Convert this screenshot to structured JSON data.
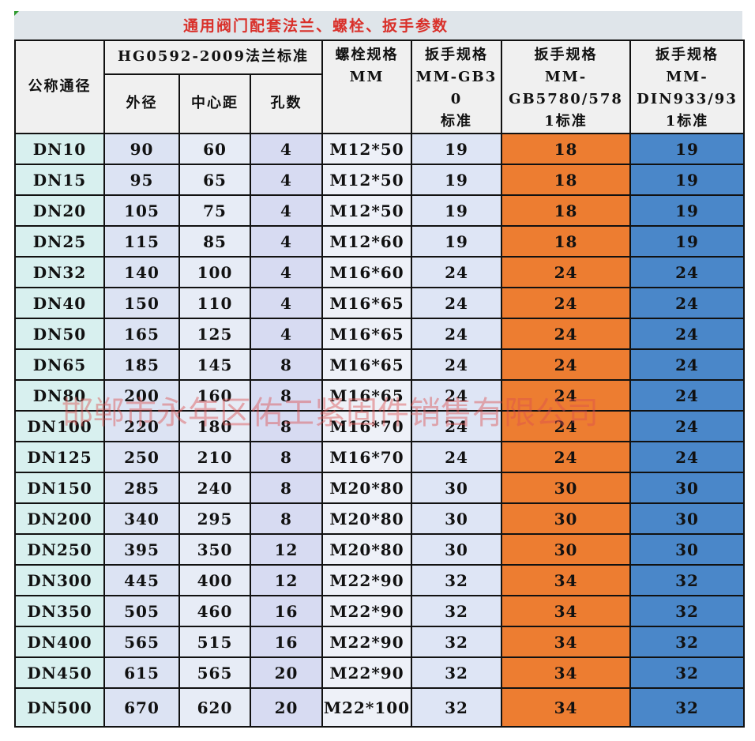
{
  "title": "通用阀门配套法兰、螺栓、扳手参数",
  "watermark": "邯郸市永年区佑工紧固件销售有限公司",
  "header": {
    "nominal": "公称通径",
    "flange_standard": "HG0592-2009法兰标准",
    "outer_diameter": "外径",
    "center_distance": "中心距",
    "holes": "孔数",
    "bolt": [
      "螺栓规格",
      "MM"
    ],
    "wrench_gb30": [
      "扳手规格",
      "MM-GB30",
      "标准"
    ],
    "wrench_gb5780": [
      "扳手规格",
      "MM-",
      "GB5780/578",
      "1标准"
    ],
    "wrench_din933": [
      "扳手规格",
      "MM-",
      "DIN933/93",
      "1标准"
    ]
  },
  "table": {
    "rows": [
      [
        "DN10",
        90,
        60,
        4,
        "M12*50",
        19,
        18,
        19
      ],
      [
        "DN15",
        95,
        65,
        4,
        "M12*50",
        19,
        18,
        19
      ],
      [
        "DN20",
        105,
        75,
        4,
        "M12*50",
        19,
        18,
        19
      ],
      [
        "DN25",
        115,
        85,
        4,
        "M12*60",
        19,
        18,
        19
      ],
      [
        "DN32",
        140,
        100,
        4,
        "M16*60",
        24,
        24,
        24
      ],
      [
        "DN40",
        150,
        110,
        4,
        "M16*65",
        24,
        24,
        24
      ],
      [
        "DN50",
        165,
        125,
        4,
        "M16*65",
        24,
        24,
        24
      ],
      [
        "DN65",
        185,
        145,
        8,
        "M16*65",
        24,
        24,
        24
      ],
      [
        "DN80",
        200,
        160,
        8,
        "M16*65",
        24,
        24,
        24
      ],
      [
        "DN100",
        220,
        180,
        8,
        "M16*70",
        24,
        24,
        24
      ],
      [
        "DN125",
        250,
        210,
        8,
        "M16*70",
        24,
        24,
        24
      ],
      [
        "DN150",
        285,
        240,
        8,
        "M20*80",
        30,
        30,
        30
      ],
      [
        "DN200",
        340,
        295,
        8,
        "M20*80",
        30,
        30,
        30
      ],
      [
        "DN250",
        395,
        350,
        12,
        "M20*80",
        30,
        30,
        30
      ],
      [
        "DN300",
        445,
        400,
        12,
        "M22*90",
        32,
        34,
        32
      ],
      [
        "DN350",
        505,
        460,
        16,
        "M22*90",
        32,
        34,
        32
      ],
      [
        "DN400",
        565,
        515,
        16,
        "M22*90",
        32,
        34,
        32
      ],
      [
        "DN450",
        615,
        565,
        20,
        "M22*90",
        32,
        34,
        32
      ],
      [
        "DN500",
        670,
        620,
        20,
        "M22*100",
        32,
        34,
        32
      ]
    ]
  }
}
